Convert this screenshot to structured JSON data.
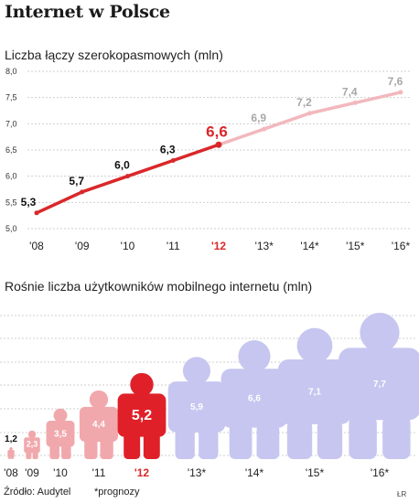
{
  "title": "Internet w Polsce",
  "source": "Źródło: Audytel",
  "note": "*prognozy",
  "initials": "ŁR",
  "colors": {
    "actual": "#d9282a",
    "forecast": "#f2b8bd",
    "persons_past": "#f0a8ac",
    "persons_current": "#e02028",
    "persons_forecast": "#c6c6f0",
    "grid": "#cfcfcf"
  },
  "chart_data": [
    {
      "type": "line",
      "title": "Liczba łączy szerokopasmowych (mln)",
      "categories": [
        "'08",
        "'09",
        "'10",
        "'11",
        "'12",
        "'13*",
        "'14*",
        "'15*",
        "'16*"
      ],
      "values": [
        5.3,
        5.7,
        6.0,
        6.3,
        6.6,
        6.9,
        7.2,
        7.4,
        7.6
      ],
      "value_labels": [
        "5,3",
        "5,7",
        "6,0",
        "6,3",
        "6,6",
        "6,9",
        "7,2",
        "7,4",
        "7,6"
      ],
      "yticks": [
        5.0,
        5.5,
        6.0,
        6.5,
        7.0,
        7.5,
        8.0
      ],
      "ytick_labels": [
        "5,0",
        "5,5",
        "6,0",
        "6,5",
        "7,0",
        "7,5",
        "8,0"
      ],
      "ylim": [
        5.0,
        8.0
      ],
      "highlight_index": 4,
      "forecast_from_index": 5,
      "grid": true
    },
    {
      "type": "bar",
      "title": "Rośnie liczba użytkowników mobilnego internetu (mln)",
      "categories": [
        "'08",
        "'09",
        "'10",
        "'11",
        "'12",
        "'13*",
        "'14*",
        "'15*",
        "'16*"
      ],
      "values": [
        1.2,
        2.3,
        3.5,
        4.4,
        5.2,
        5.9,
        6.6,
        7.1,
        7.7
      ],
      "value_labels": [
        "1,2",
        "2,3",
        "3,5",
        "4,4",
        "5,2",
        "5,9",
        "6,6",
        "7,1",
        "7,7"
      ],
      "highlight_index": 4,
      "forecast_from_index": 5,
      "grid": true
    }
  ]
}
